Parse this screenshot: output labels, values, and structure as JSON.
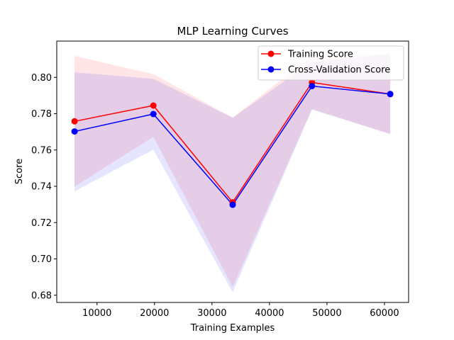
{
  "chart_data": {
    "type": "line",
    "title": "MLP Learning Curves",
    "xlabel": "Training Examples",
    "ylabel": "Score",
    "xlim": [
      3000,
      64200
    ],
    "ylim": [
      0.676,
      0.82
    ],
    "xticks": [
      10000,
      20000,
      30000,
      40000,
      50000,
      60000
    ],
    "xtick_labels": [
      "10000",
      "20000",
      "30000",
      "40000",
      "50000",
      "60000"
    ],
    "yticks": [
      0.68,
      0.7,
      0.72,
      0.74,
      0.76,
      0.78,
      0.8
    ],
    "ytick_labels": [
      "0.68",
      "0.70",
      "0.72",
      "0.74",
      "0.76",
      "0.78",
      "0.80"
    ],
    "grid": false,
    "legend_position": "top-right",
    "x": [
      6100,
      19800,
      33600,
      47400,
      61000
    ],
    "series": [
      {
        "name": "Training Score",
        "color": "#ff0000",
        "values": [
          0.7758,
          0.7845,
          0.7312,
          0.7972,
          0.7908
        ],
        "band_upper": [
          0.8118,
          0.8018,
          0.7778,
          0.8118,
          0.8128
        ],
        "band_lower": [
          0.7398,
          0.7672,
          0.6846,
          0.7826,
          0.7688
        ],
        "band_color": "#ff0000"
      },
      {
        "name": "Cross-Validation Score",
        "color": "#0000ff",
        "values": [
          0.7702,
          0.7798,
          0.7298,
          0.7952,
          0.7908
        ],
        "band_upper": [
          0.8028,
          0.7992,
          0.7778,
          0.8085,
          0.8128
        ],
        "band_lower": [
          0.7372,
          0.7602,
          0.6816,
          0.7822,
          0.7688
        ],
        "band_color": "#0000ff"
      }
    ]
  }
}
